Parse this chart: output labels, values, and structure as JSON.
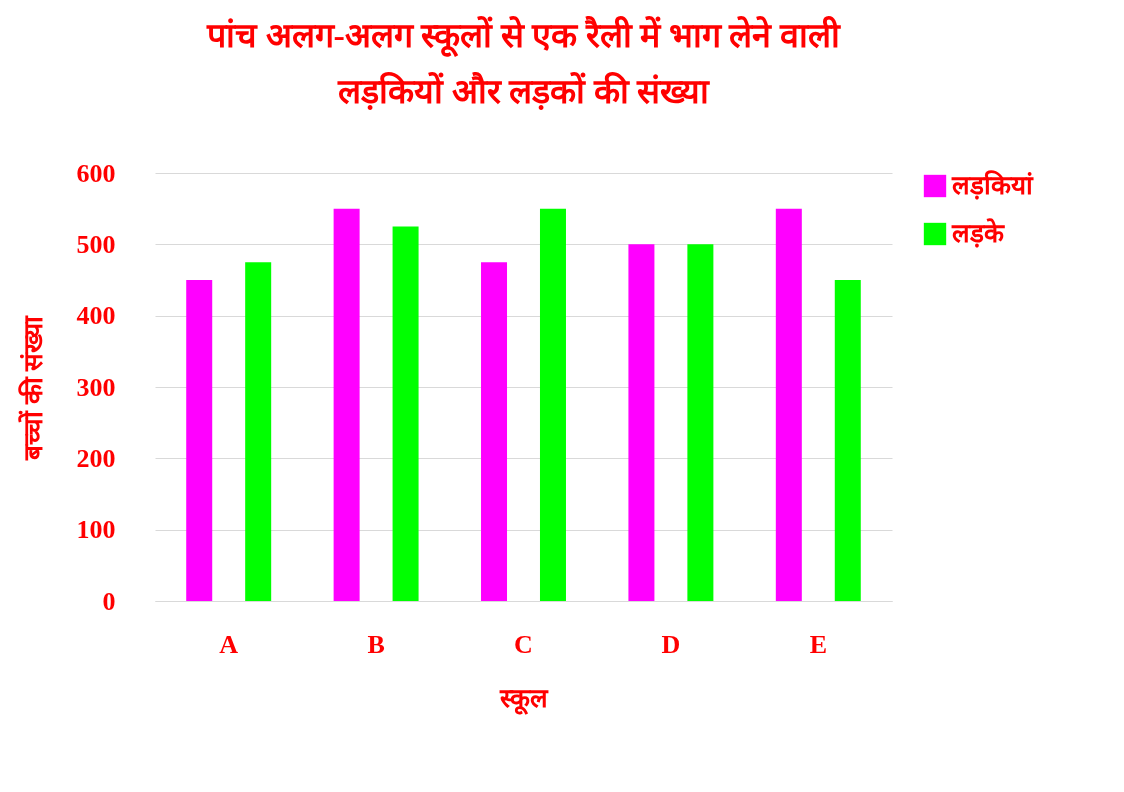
{
  "chart_data": {
    "type": "bar",
    "title": "पांच अलग-अलग स्कूलों से एक रैली में भाग लेने वाली लड़कियों और लड़कों की संख्या",
    "xlabel": "स्कूल",
    "ylabel": "बच्चों की संख्या",
    "categories": [
      "A",
      "B",
      "C",
      "D",
      "E"
    ],
    "series": [
      {
        "name": "लड़कियां",
        "color": "#ff00ff",
        "values": [
          450,
          550,
          475,
          500,
          550
        ]
      },
      {
        "name": "लड़के",
        "color": "#00ff00",
        "values": [
          475,
          525,
          550,
          500,
          450
        ]
      }
    ],
    "ylim": [
      0,
      600
    ],
    "yticks": [
      0,
      100,
      200,
      300,
      400,
      500,
      600
    ],
    "grid": "y",
    "legend": "right"
  }
}
